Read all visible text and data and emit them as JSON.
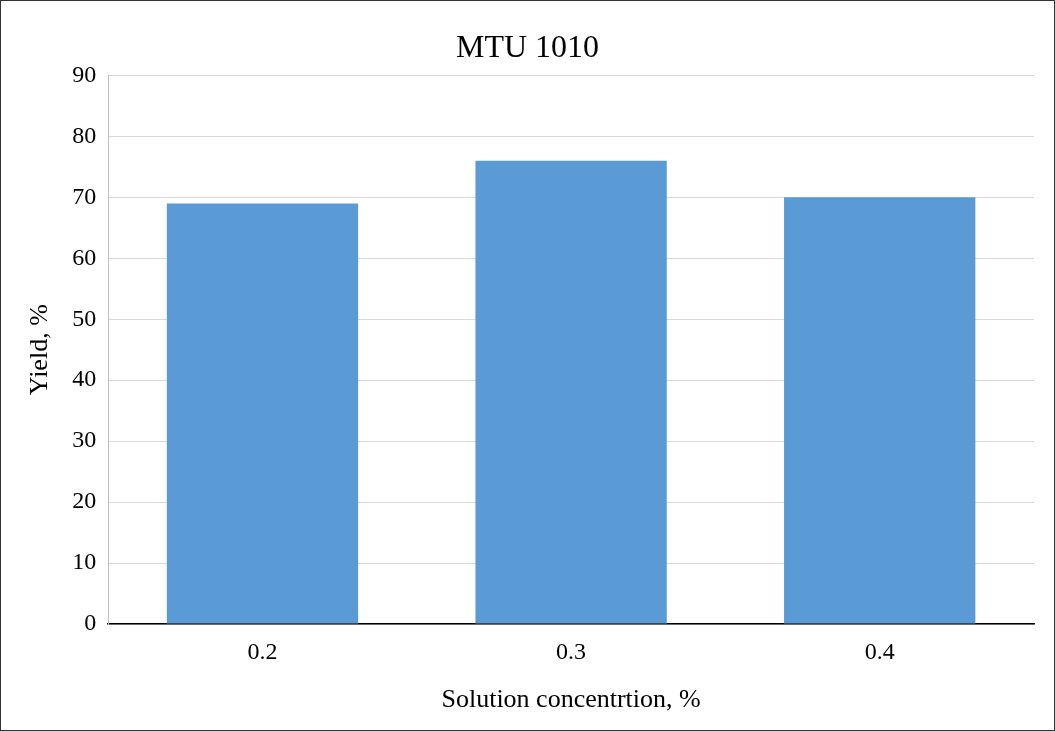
{
  "chart_data": {
    "type": "bar",
    "title": "MTU 1010",
    "xlabel": "Solution concentrtion, %",
    "ylabel": "Yield, %",
    "categories": [
      "0.2",
      "0.3",
      "0.4"
    ],
    "values": [
      69,
      76,
      70
    ],
    "color": "#5b9bd5",
    "ylim": [
      0,
      90
    ],
    "yticks": [
      0,
      10,
      20,
      30,
      40,
      50,
      60,
      70,
      80,
      90
    ],
    "grid": "y",
    "legend": false
  }
}
